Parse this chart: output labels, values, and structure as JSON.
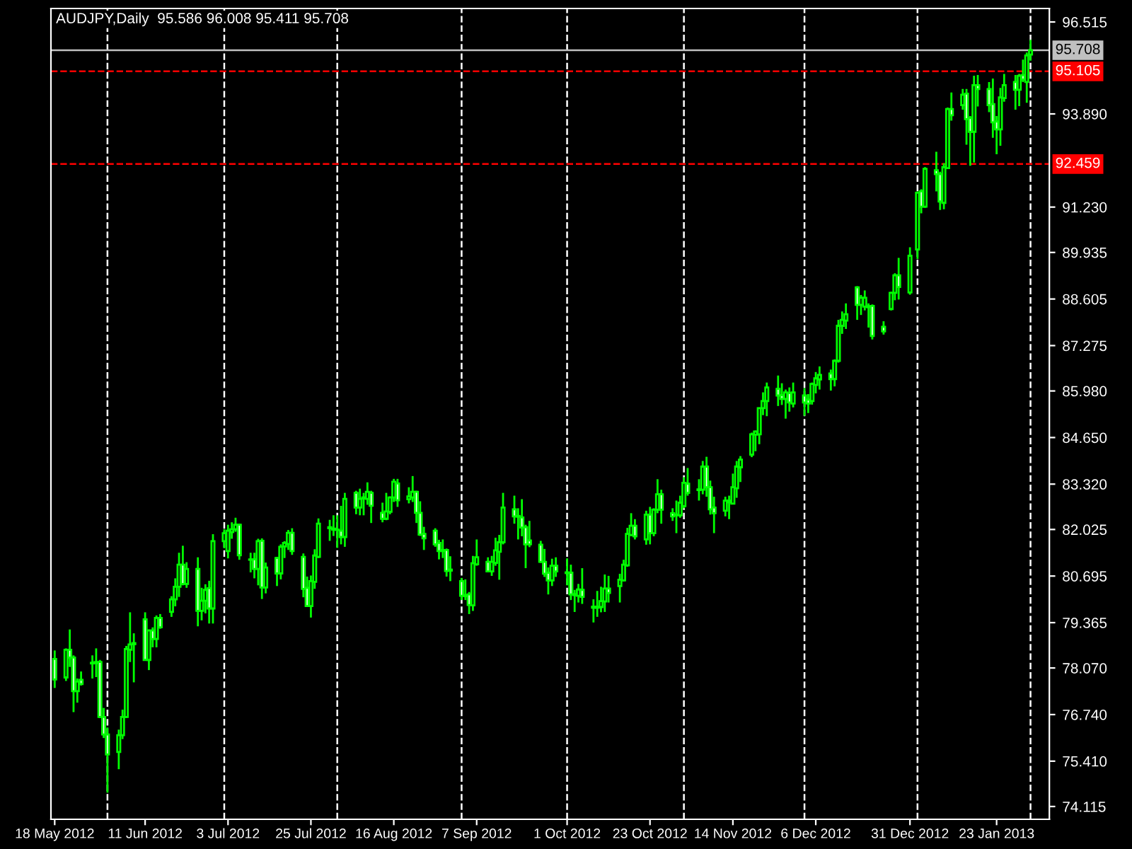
{
  "chart_data": {
    "type": "candlestick",
    "title": "AUDJPY,Daily  95.586 96.008 95.411 95.708",
    "color": "#00ff00",
    "x": [
      "2012-05-18",
      "2012-05-21",
      "2012-05-22",
      "2012-05-23",
      "2012-05-24",
      "2012-05-25",
      "2012-05-28",
      "2012-05-29",
      "2012-05-30",
      "2012-05-31",
      "2012-06-01",
      "2012-06-04",
      "2012-06-05",
      "2012-06-06",
      "2012-06-07",
      "2012-06-08",
      "2012-06-11",
      "2012-06-12",
      "2012-06-13",
      "2012-06-14",
      "2012-06-15",
      "2012-06-18",
      "2012-06-19",
      "2012-06-20",
      "2012-06-21",
      "2012-06-22",
      "2012-06-25",
      "2012-06-26",
      "2012-06-27",
      "2012-06-28",
      "2012-06-29",
      "2012-07-02",
      "2012-07-03",
      "2012-07-04",
      "2012-07-05",
      "2012-07-06",
      "2012-07-09",
      "2012-07-10",
      "2012-07-11",
      "2012-07-12",
      "2012-07-13",
      "2012-07-16",
      "2012-07-17",
      "2012-07-18",
      "2012-07-19",
      "2012-07-20",
      "2012-07-23",
      "2012-07-24",
      "2012-07-25",
      "2012-07-26",
      "2012-07-27",
      "2012-07-30",
      "2012-07-31",
      "2012-08-01",
      "2012-08-02",
      "2012-08-03",
      "2012-08-06",
      "2012-08-07",
      "2012-08-08",
      "2012-08-09",
      "2012-08-10",
      "2012-08-13",
      "2012-08-14",
      "2012-08-15",
      "2012-08-16",
      "2012-08-17",
      "2012-08-20",
      "2012-08-21",
      "2012-08-22",
      "2012-08-23",
      "2012-08-24",
      "2012-08-27",
      "2012-08-28",
      "2012-08-29",
      "2012-08-30",
      "2012-08-31",
      "2012-09-03",
      "2012-09-04",
      "2012-09-05",
      "2012-09-06",
      "2012-09-07",
      "2012-09-10",
      "2012-09-11",
      "2012-09-12",
      "2012-09-13",
      "2012-09-14",
      "2012-09-17",
      "2012-09-18",
      "2012-09-19",
      "2012-09-20",
      "2012-09-21",
      "2012-09-24",
      "2012-09-25",
      "2012-09-26",
      "2012-09-27",
      "2012-09-28",
      "2012-10-01",
      "2012-10-02",
      "2012-10-03",
      "2012-10-04",
      "2012-10-05",
      "2012-10-08",
      "2012-10-09",
      "2012-10-10",
      "2012-10-11",
      "2012-10-12",
      "2012-10-15",
      "2012-10-16",
      "2012-10-17",
      "2012-10-18",
      "2012-10-19",
      "2012-10-22",
      "2012-10-23",
      "2012-10-24",
      "2012-10-25",
      "2012-10-26",
      "2012-10-29",
      "2012-10-30",
      "2012-10-31",
      "2012-11-01",
      "2012-11-02",
      "2012-11-05",
      "2012-11-06",
      "2012-11-07",
      "2012-11-08",
      "2012-11-09",
      "2012-11-12",
      "2012-11-13",
      "2012-11-14",
      "2012-11-15",
      "2012-11-16",
      "2012-11-19",
      "2012-11-20",
      "2012-11-21",
      "2012-11-22",
      "2012-11-23",
      "2012-11-26",
      "2012-11-27",
      "2012-11-28",
      "2012-11-29",
      "2012-11-30",
      "2012-12-03",
      "2012-12-04",
      "2012-12-05",
      "2012-12-06",
      "2012-12-07",
      "2012-12-10",
      "2012-12-11",
      "2012-12-12",
      "2012-12-13",
      "2012-12-14",
      "2012-12-17",
      "2012-12-18",
      "2012-12-19",
      "2012-12-20",
      "2012-12-21",
      "2012-12-24",
      "2012-12-26",
      "2012-12-27",
      "2012-12-28",
      "2012-12-31",
      "2013-01-02",
      "2013-01-03",
      "2013-01-04",
      "2013-01-07",
      "2013-01-08",
      "2013-01-09",
      "2013-01-10",
      "2013-01-11",
      "2013-01-14",
      "2013-01-15",
      "2013-01-16",
      "2013-01-17",
      "2013-01-18",
      "2013-01-21",
      "2013-01-22",
      "2013-01-23",
      "2013-01-24",
      "2013-01-25",
      "2013-01-28",
      "2013-01-29",
      "2013-01-30",
      "2013-01-31",
      "2013-02-01"
    ],
    "ohlc": [
      [
        78.33,
        78.57,
        77.5,
        77.74
      ],
      [
        77.8,
        78.63,
        77.7,
        78.59
      ],
      [
        78.59,
        79.17,
        78.1,
        78.37
      ],
      [
        78.37,
        78.43,
        76.81,
        77.41
      ],
      [
        77.41,
        77.77,
        77.08,
        77.68
      ],
      [
        77.73,
        77.97,
        77.57,
        77.61
      ],
      [
        78.2,
        78.43,
        77.77,
        78.22
      ],
      [
        78.21,
        78.63,
        77.81,
        78.24
      ],
      [
        78.24,
        78.3,
        76.64,
        76.67
      ],
      [
        76.67,
        76.93,
        76.07,
        76.17
      ],
      [
        76.17,
        76.37,
        74.51,
        75.6
      ],
      [
        75.67,
        76.31,
        75.18,
        76.15
      ],
      [
        76.15,
        76.88,
        76.04,
        76.67
      ],
      [
        76.67,
        78.7,
        76.64,
        78.61
      ],
      [
        78.59,
        79.66,
        78.24,
        78.74
      ],
      [
        78.75,
        79.06,
        77.66,
        78.78
      ],
      [
        79.46,
        79.66,
        78.28,
        78.3
      ],
      [
        78.3,
        79.17,
        78.01,
        79.14
      ],
      [
        79.14,
        79.23,
        78.66,
        78.9
      ],
      [
        78.9,
        79.57,
        78.66,
        79.5
      ],
      [
        79.5,
        79.61,
        79.19,
        79.23
      ],
      [
        79.67,
        80.12,
        79.53,
        80.03
      ],
      [
        80.03,
        80.63,
        79.83,
        80.39
      ],
      [
        80.39,
        81.36,
        80.1,
        81.02
      ],
      [
        81.02,
        81.56,
        80.43,
        80.47
      ],
      [
        80.47,
        81.09,
        80.36,
        80.9
      ],
      [
        80.9,
        81.23,
        79.26,
        79.7
      ],
      [
        79.7,
        80.36,
        79.43,
        79.99
      ],
      [
        79.99,
        80.46,
        79.63,
        80.3
      ],
      [
        80.35,
        80.56,
        79.34,
        79.77
      ],
      [
        79.77,
        81.89,
        79.34,
        81.69
      ],
      [
        81.69,
        82.03,
        81.49,
        81.92
      ],
      [
        81.41,
        82.16,
        81.2,
        81.99
      ],
      [
        81.95,
        82.23,
        81.76,
        82.03
      ],
      [
        82.03,
        82.36,
        81.96,
        82.16
      ],
      [
        82.16,
        82.19,
        81.16,
        81.29
      ],
      [
        81.17,
        81.36,
        80.8,
        81.16
      ],
      [
        81.17,
        81.36,
        80.63,
        80.9
      ],
      [
        80.9,
        81.76,
        80.43,
        81.69
      ],
      [
        81.7,
        81.77,
        80.04,
        80.37
      ],
      [
        80.37,
        81.08,
        80.2,
        80.94
      ],
      [
        81.21,
        81.24,
        80.41,
        80.77
      ],
      [
        80.77,
        81.6,
        80.6,
        81.53
      ],
      [
        81.54,
        81.69,
        81.21,
        81.64
      ],
      [
        81.61,
        82.01,
        81.44,
        81.93
      ],
      [
        81.93,
        82.06,
        81.3,
        81.41
      ],
      [
        81.24,
        81.34,
        80.09,
        80.33
      ],
      [
        80.36,
        80.68,
        79.83,
        79.84
      ],
      [
        79.84,
        80.71,
        79.51,
        80.55
      ],
      [
        80.53,
        81.46,
        80.33,
        81.28
      ],
      [
        81.24,
        82.34,
        81.21,
        82.19
      ],
      [
        82.06,
        82.3,
        81.7,
        82.09
      ],
      [
        82.02,
        82.43,
        81.84,
        82.05
      ],
      [
        82.01,
        82.43,
        81.5,
        82.02
      ],
      [
        81.99,
        82.7,
        81.6,
        81.81
      ],
      [
        81.81,
        83.07,
        81.53,
        82.9
      ],
      [
        83.07,
        83.13,
        82.46,
        82.65
      ],
      [
        82.65,
        83.19,
        82.43,
        82.9
      ],
      [
        82.91,
        83.07,
        82.43,
        82.94
      ],
      [
        82.9,
        83.37,
        82.73,
        83.1
      ],
      [
        83.07,
        83.13,
        82.21,
        82.7
      ],
      [
        82.5,
        82.79,
        82.23,
        82.33
      ],
      [
        82.33,
        83.07,
        82.29,
        82.54
      ],
      [
        82.53,
        82.97,
        82.46,
        82.94
      ],
      [
        82.94,
        83.47,
        82.81,
        83.39
      ],
      [
        83.34,
        83.47,
        82.67,
        82.86
      ],
      [
        82.89,
        83.23,
        82.77,
        82.97
      ],
      [
        82.94,
        83.55,
        82.81,
        83.1
      ],
      [
        83.1,
        83.13,
        82.21,
        82.5
      ],
      [
        82.5,
        82.83,
        81.84,
        81.88
      ],
      [
        81.9,
        82.1,
        81.44,
        81.77
      ],
      [
        81.99,
        82.06,
        81.53,
        81.6
      ],
      [
        81.64,
        81.73,
        81.17,
        81.41
      ],
      [
        81.44,
        81.74,
        81.21,
        81.41
      ],
      [
        81.44,
        81.48,
        80.68,
        80.84
      ],
      [
        80.88,
        81.26,
        80.55,
        80.85
      ],
      [
        80.55,
        80.64,
        80.01,
        80.13
      ],
      [
        80.15,
        80.6,
        80.01,
        80.12
      ],
      [
        80.17,
        80.24,
        79.61,
        79.87
      ],
      [
        79.86,
        81.27,
        79.7,
        81.06
      ],
      [
        81.03,
        81.74,
        80.99,
        81.23
      ],
      [
        81.1,
        81.23,
        80.8,
        80.83
      ],
      [
        80.83,
        81.27,
        80.7,
        81.1
      ],
      [
        81.07,
        81.79,
        80.99,
        81.43
      ],
      [
        81.39,
        81.87,
        80.59,
        81.66
      ],
      [
        81.66,
        83.07,
        81.6,
        82.65
      ],
      [
        82.6,
        82.99,
        82.19,
        82.4
      ],
      [
        82.41,
        82.63,
        81.74,
        82.39
      ],
      [
        82.37,
        82.89,
        81.83,
        82.08
      ],
      [
        82.09,
        82.16,
        80.92,
        81.6
      ],
      [
        81.71,
        82.27,
        81.52,
        81.6
      ],
      [
        81.59,
        81.7,
        81.07,
        81.1
      ],
      [
        81.1,
        81.47,
        80.67,
        80.76
      ],
      [
        80.79,
        80.94,
        80.17,
        80.57
      ],
      [
        80.57,
        81.19,
        80.41,
        80.99
      ],
      [
        80.99,
        81.23,
        80.67,
        80.83
      ],
      [
        80.8,
        81.2,
        80.43,
        80.78
      ],
      [
        80.79,
        81.02,
        80.01,
        80.17
      ],
      [
        80.18,
        80.3,
        79.67,
        80.15
      ],
      [
        80.13,
        80.47,
        79.94,
        80.31
      ],
      [
        80.3,
        80.92,
        79.9,
        80.1
      ],
      [
        79.82,
        80.03,
        79.37,
        79.79
      ],
      [
        79.79,
        80.27,
        79.53,
        79.82
      ],
      [
        79.81,
        80.39,
        79.66,
        79.98
      ],
      [
        79.97,
        80.74,
        79.67,
        80.34
      ],
      [
        80.34,
        80.7,
        79.94,
        80.21
      ],
      [
        80.41,
        80.76,
        79.94,
        80.59
      ],
      [
        80.57,
        81.16,
        80.54,
        81.02
      ],
      [
        81.0,
        82.07,
        80.96,
        81.9
      ],
      [
        81.87,
        82.49,
        81.83,
        82.13
      ],
      [
        82.13,
        82.32,
        81.74,
        81.83
      ],
      [
        81.74,
        82.56,
        81.59,
        82.45
      ],
      [
        82.45,
        82.67,
        81.6,
        81.92
      ],
      [
        81.92,
        82.63,
        81.83,
        82.59
      ],
      [
        82.59,
        83.46,
        82.49,
        83.03
      ],
      [
        83.03,
        83.16,
        82.19,
        82.59
      ],
      [
        82.49,
        82.63,
        82.27,
        82.4
      ],
      [
        82.43,
        82.85,
        81.92,
        82.45
      ],
      [
        82.43,
        82.99,
        82.36,
        82.79
      ],
      [
        82.69,
        83.52,
        82.63,
        83.36
      ],
      [
        83.33,
        83.78,
        82.99,
        83.07
      ],
      [
        83.17,
        83.46,
        82.85,
        83.15
      ],
      [
        83.16,
        83.98,
        83.03,
        83.82
      ],
      [
        83.82,
        84.1,
        82.96,
        83.23
      ],
      [
        83.23,
        83.42,
        82.45,
        82.6
      ],
      [
        82.65,
        82.96,
        81.92,
        82.49
      ],
      [
        82.56,
        82.96,
        82.4,
        82.85
      ],
      [
        82.8,
        82.99,
        82.32,
        82.85
      ],
      [
        82.76,
        83.62,
        82.76,
        83.23
      ],
      [
        83.2,
        83.98,
        82.93,
        83.82
      ],
      [
        83.8,
        84.12,
        83.38,
        84.02
      ],
      [
        84.16,
        84.79,
        84.09,
        84.74
      ],
      [
        84.73,
        84.85,
        84.26,
        84.82
      ],
      [
        84.74,
        85.51,
        84.46,
        85.49
      ],
      [
        85.49,
        85.94,
        85.29,
        85.69
      ],
      [
        85.69,
        86.22,
        85.26,
        86.08
      ],
      [
        86.04,
        86.42,
        85.55,
        85.85
      ],
      [
        85.86,
        86.2,
        85.58,
        85.75
      ],
      [
        85.75,
        86.02,
        85.19,
        85.94
      ],
      [
        85.92,
        86.08,
        85.39,
        85.65
      ],
      [
        85.62,
        86.22,
        85.51,
        85.94
      ],
      [
        85.85,
        86.06,
        85.27,
        85.65
      ],
      [
        85.73,
        85.89,
        85.35,
        85.62
      ],
      [
        85.69,
        86.22,
        85.59,
        86.18
      ],
      [
        86.15,
        86.52,
        85.91,
        86.34
      ],
      [
        86.31,
        86.68,
        86.02,
        86.44
      ],
      [
        86.48,
        86.59,
        85.99,
        86.32
      ],
      [
        86.32,
        86.88,
        86.11,
        86.84
      ],
      [
        86.84,
        88.01,
        86.79,
        87.84
      ],
      [
        87.84,
        88.25,
        87.61,
        88.01
      ],
      [
        87.99,
        88.48,
        87.75,
        88.17
      ],
      [
        88.94,
        88.97,
        88.01,
        88.44
      ],
      [
        88.44,
        88.72,
        88.15,
        88.64
      ],
      [
        88.39,
        88.85,
        88.28,
        88.64
      ],
      [
        88.4,
        88.48,
        87.79,
        88.37
      ],
      [
        88.41,
        88.45,
        87.45,
        87.55
      ],
      [
        87.81,
        87.97,
        87.59,
        87.68
      ],
      [
        88.32,
        88.81,
        88.28,
        88.78
      ],
      [
        88.78,
        89.34,
        88.57,
        89.28
      ],
      [
        89.28,
        89.78,
        88.59,
        88.95
      ],
      [
        88.79,
        90.08,
        88.73,
        89.84
      ],
      [
        90.02,
        91.68,
        89.75,
        91.64
      ],
      [
        91.68,
        91.74,
        91.05,
        91.24
      ],
      [
        91.24,
        92.37,
        91.21,
        92.32
      ],
      [
        92.28,
        92.81,
        91.68,
        92.17
      ],
      [
        92.17,
        92.24,
        91.15,
        91.39
      ],
      [
        91.35,
        92.48,
        91.17,
        92.37
      ],
      [
        92.34,
        94.07,
        92.32,
        94.03
      ],
      [
        94.03,
        94.5,
        93.7,
        93.85
      ],
      [
        94.14,
        94.6,
        94.01,
        94.44
      ],
      [
        94.47,
        94.6,
        93.01,
        93.74
      ],
      [
        93.77,
        93.83,
        92.41,
        93.38
      ],
      [
        93.38,
        94.98,
        92.5,
        94.71
      ],
      [
        94.71,
        95.0,
        94.1,
        94.6
      ],
      [
        94.6,
        94.8,
        93.94,
        94.14
      ],
      [
        94.17,
        94.9,
        93.21,
        93.65
      ],
      [
        93.67,
        93.83,
        92.74,
        93.45
      ],
      [
        93.45,
        94.63,
        92.98,
        94.36
      ],
      [
        94.34,
        95.03,
        94.24,
        94.71
      ],
      [
        94.8,
        95.0,
        94.01,
        94.58
      ],
      [
        94.58,
        95.03,
        94.11,
        94.98
      ],
      [
        95.0,
        95.44,
        94.8,
        94.87
      ],
      [
        94.8,
        95.64,
        94.21,
        95.56
      ],
      [
        95.586,
        96.008,
        95.411,
        95.708
      ]
    ],
    "xlim": [
      "2012-05-17",
      "2013-02-06"
    ],
    "ylim": [
      73.75,
      96.9
    ],
    "yticks": [
      96.515,
      {
        "value": 93.89,
        "label": "93.890"
      },
      {
        "value": 91.23,
        "label": "91.230"
      },
      89.935,
      88.605,
      87.275,
      {
        "value": 85.98,
        "label": "85.980"
      },
      {
        "value": 84.65,
        "label": "84.650"
      },
      {
        "value": 83.32,
        "label": "83.320"
      },
      82.025,
      80.695,
      79.365,
      {
        "value": 78.07,
        "label": "78.070"
      },
      {
        "value": 76.74,
        "label": "76.740"
      },
      {
        "value": 75.41,
        "label": "75.410"
      },
      74.115
    ],
    "xticks": [
      {
        "value": "2012-05-18",
        "label": "18 May 2012"
      },
      {
        "value": "2012-06-11",
        "label": "11 Jun 2012"
      },
      {
        "value": "2012-07-03",
        "label": "3 Jul 2012"
      },
      {
        "value": "2012-07-25",
        "label": "25 Jul 2012"
      },
      {
        "value": "2012-08-16",
        "label": "16 Aug 2012"
      },
      {
        "value": "2012-09-07",
        "label": "7 Sep 2012"
      },
      {
        "value": "2012-10-01",
        "label": "1 Oct 2012"
      },
      {
        "value": "2012-10-23",
        "label": "23 Oct 2012"
      },
      {
        "value": "2012-11-14",
        "label": "14 Nov 2012"
      },
      {
        "value": "2012-12-06",
        "label": "6 Dec 2012"
      },
      {
        "value": "2012-12-31",
        "label": "31 Dec 2012"
      },
      {
        "value": "2013-01-23",
        "label": "23 Jan 2013"
      }
    ],
    "ref_lines": [
      {
        "axis": "y",
        "value": 95.708,
        "label": "95.708",
        "color": "#c0c0c0",
        "line_style": "solid"
      },
      {
        "axis": "y",
        "value": 95.105,
        "label": "95.105",
        "color": "#ff0000",
        "line_style": "dashed"
      },
      {
        "axis": "y",
        "value": 92.459,
        "label": "92.459",
        "color": "#ff0000",
        "line_style": "dashed"
      },
      {
        "axis": "x",
        "value": "2012-06-01",
        "color": "#ffffff",
        "line_style": "dashed"
      },
      {
        "axis": "x",
        "value": "2012-07-02",
        "color": "#ffffff",
        "line_style": "dashed"
      },
      {
        "axis": "x",
        "value": "2012-08-01",
        "color": "#ffffff",
        "line_style": "dashed"
      },
      {
        "axis": "x",
        "value": "2012-09-03",
        "color": "#ffffff",
        "line_style": "dashed"
      },
      {
        "axis": "x",
        "value": "2012-10-01",
        "color": "#ffffff",
        "line_style": "dashed"
      },
      {
        "axis": "x",
        "value": "2012-11-01",
        "color": "#ffffff",
        "line_style": "dashed"
      },
      {
        "axis": "x",
        "value": "2012-12-03",
        "color": "#ffffff",
        "line_style": "dashed"
      },
      {
        "axis": "x",
        "value": "2013-01-02",
        "color": "#ffffff",
        "line_style": "dashed"
      },
      {
        "axis": "x",
        "value": "2013-02-01",
        "color": "#ffffff",
        "line_style": "dashed"
      }
    ],
    "grid": false,
    "legend": false
  }
}
